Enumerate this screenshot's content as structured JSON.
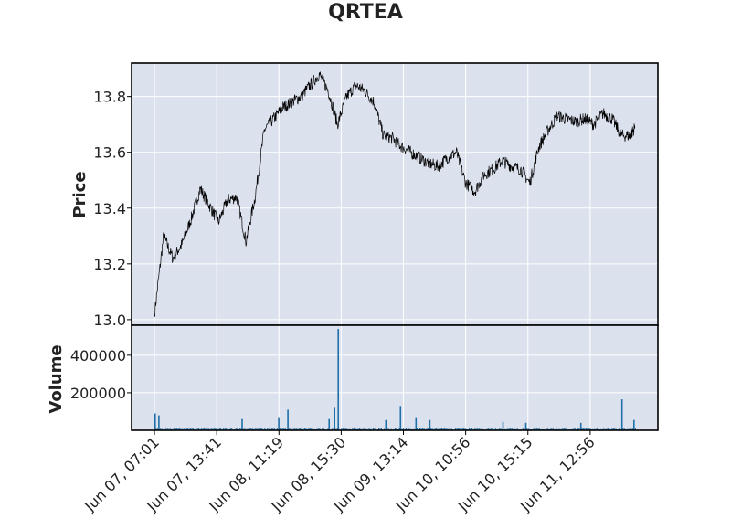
{
  "chart_data": {
    "type": "line",
    "title": "QRTEA",
    "price_panel": {
      "ylabel": "Price",
      "ylim": [
        12.98,
        13.92
      ],
      "yticks": [
        13.0,
        13.2,
        13.4,
        13.6,
        13.8
      ],
      "ytick_labels": [
        "13.0",
        "13.2",
        "13.4",
        "13.6",
        "13.8"
      ],
      "series": [
        {
          "x": [
            0,
            10,
            20,
            30,
            40,
            50,
            60,
            70,
            80,
            90,
            100,
            110,
            120,
            130,
            140,
            150,
            160,
            170,
            180,
            190,
            200,
            210,
            220,
            230,
            240,
            250,
            260,
            270,
            280,
            290,
            300,
            310,
            320,
            330,
            340,
            350,
            360,
            370,
            380,
            390,
            400,
            410,
            420,
            430,
            440,
            450,
            460,
            470,
            480,
            490,
            500,
            510,
            520,
            525
          ],
          "values": [
            13.02,
            13.3,
            13.22,
            13.27,
            13.36,
            13.47,
            13.41,
            13.35,
            13.43,
            13.44,
            13.28,
            13.44,
            13.68,
            13.72,
            13.76,
            13.78,
            13.8,
            13.84,
            13.88,
            13.82,
            13.7,
            13.8,
            13.84,
            13.82,
            13.78,
            13.66,
            13.65,
            13.62,
            13.6,
            13.58,
            13.56,
            13.55,
            13.58,
            13.6,
            13.49,
            13.46,
            13.52,
            13.54,
            13.57,
            13.55,
            13.54,
            13.49,
            13.62,
            13.68,
            13.73,
            13.72,
            13.71,
            13.72,
            13.7,
            13.74,
            13.72,
            13.66,
            13.66,
            13.69
          ]
        }
      ]
    },
    "volume_panel": {
      "ylabel": "Volume",
      "ylim": [
        0,
        560000
      ],
      "yticks": [
        200000,
        400000
      ],
      "ytick_labels": [
        "200000",
        "400000"
      ],
      "spikes": [
        {
          "x": 0,
          "value": 90000
        },
        {
          "x": 4,
          "value": 80000
        },
        {
          "x": 95,
          "value": 60000
        },
        {
          "x": 135,
          "value": 70000
        },
        {
          "x": 145,
          "value": 110000
        },
        {
          "x": 190,
          "value": 60000
        },
        {
          "x": 196,
          "value": 120000
        },
        {
          "x": 200,
          "value": 540000
        },
        {
          "x": 252,
          "value": 55000
        },
        {
          "x": 268,
          "value": 130000
        },
        {
          "x": 285,
          "value": 70000
        },
        {
          "x": 300,
          "value": 55000
        },
        {
          "x": 380,
          "value": 45000
        },
        {
          "x": 405,
          "value": 40000
        },
        {
          "x": 465,
          "value": 40000
        },
        {
          "x": 510,
          "value": 165000
        },
        {
          "x": 523,
          "value": 55000
        }
      ]
    },
    "x_axis": {
      "range": [
        -25,
        550
      ],
      "ticks": [
        {
          "x": 0,
          "label": "Jun 07, 07:01"
        },
        {
          "x": 68,
          "label": "Jun 07, 13:41"
        },
        {
          "x": 136,
          "label": "Jun 08, 11:19"
        },
        {
          "x": 204,
          "label": "Jun 08, 15:30"
        },
        {
          "x": 272,
          "label": "Jun 09, 13:14"
        },
        {
          "x": 340,
          "label": "Jun 10, 10:56"
        },
        {
          "x": 408,
          "label": "Jun 10, 15:15"
        },
        {
          "x": 476,
          "label": "Jun 11, 12:56"
        }
      ]
    },
    "grid": true,
    "colors": {
      "panel_bg": "#dce1ee",
      "price_line": "#000000",
      "volume_bar": "#1f6fa8",
      "grid": "#ffffff"
    }
  }
}
